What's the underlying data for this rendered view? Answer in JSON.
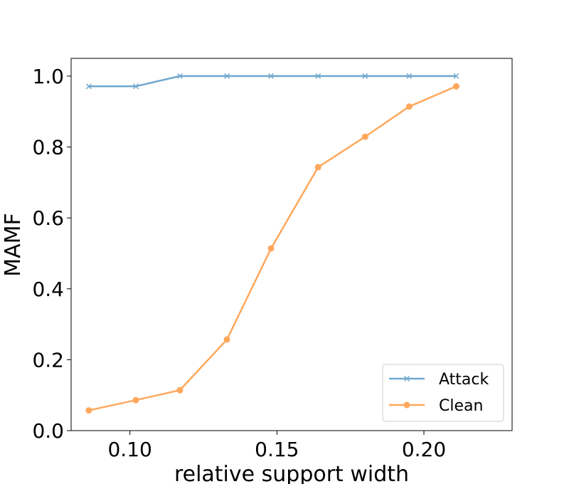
{
  "chart_data": {
    "type": "line",
    "xlabel": "relative support width",
    "ylabel": "MAMF",
    "xlim": [
      0.08,
      0.23
    ],
    "ylim": [
      0.0,
      1.05
    ],
    "xticks": [
      0.1,
      0.15,
      0.2
    ],
    "xtick_labels": [
      "0.10",
      "0.15",
      "0.20"
    ],
    "yticks": [
      0.0,
      0.2,
      0.4,
      0.6,
      0.8,
      1.0
    ],
    "ytick_labels": [
      "0.0",
      "0.2",
      "0.4",
      "0.6",
      "0.8",
      "1.0"
    ],
    "grid": false,
    "legend_position": "lower-right",
    "x": [
      0.086,
      0.102,
      0.117,
      0.133,
      0.148,
      0.164,
      0.18,
      0.195,
      0.211
    ],
    "series": [
      {
        "name": "Attack",
        "marker": "x",
        "color": "#6fa8cd",
        "values": [
          0.971,
          0.971,
          1.0,
          1.0,
          1.0,
          1.0,
          1.0,
          1.0,
          1.0
        ]
      },
      {
        "name": "Clean",
        "marker": "circle",
        "color": "#ffa85c",
        "values": [
          0.057,
          0.086,
          0.114,
          0.257,
          0.514,
          0.743,
          0.829,
          0.914,
          0.971
        ]
      }
    ]
  }
}
